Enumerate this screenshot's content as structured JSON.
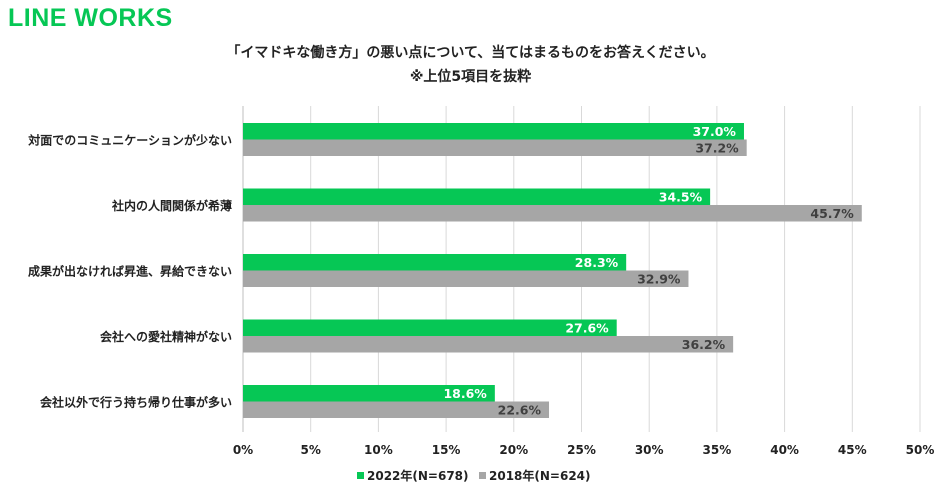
{
  "brand": {
    "logo_text": "LINE WORKS"
  },
  "chart_data": {
    "type": "bar",
    "orientation": "horizontal",
    "title": "「イマドキな働き方」の悪い点について、当てはまるものをお答えください。",
    "subtitle": "※上位5項目を抜粋",
    "categories": [
      "対面でのコミュニケーションが少ない",
      "社内の人間関係が希薄",
      "成果が出なければ昇進、昇給できない",
      "会社への愛社精神がない",
      "会社以外で行う持ち帰り仕事が多い"
    ],
    "series": [
      {
        "name": "2022年(N=678)",
        "color": "#06c755",
        "values": [
          37.0,
          34.5,
          28.3,
          27.6,
          18.6
        ]
      },
      {
        "name": "2018年(N=624)",
        "color": "#a6a6a6",
        "values": [
          37.2,
          45.7,
          32.9,
          36.2,
          22.6
        ]
      }
    ],
    "xlim": [
      0,
      50
    ],
    "xticks": [
      0,
      5,
      10,
      15,
      20,
      25,
      30,
      35,
      40,
      45,
      50
    ],
    "tick_suffix": "%",
    "grid": true,
    "legend_position": "bottom-center"
  }
}
